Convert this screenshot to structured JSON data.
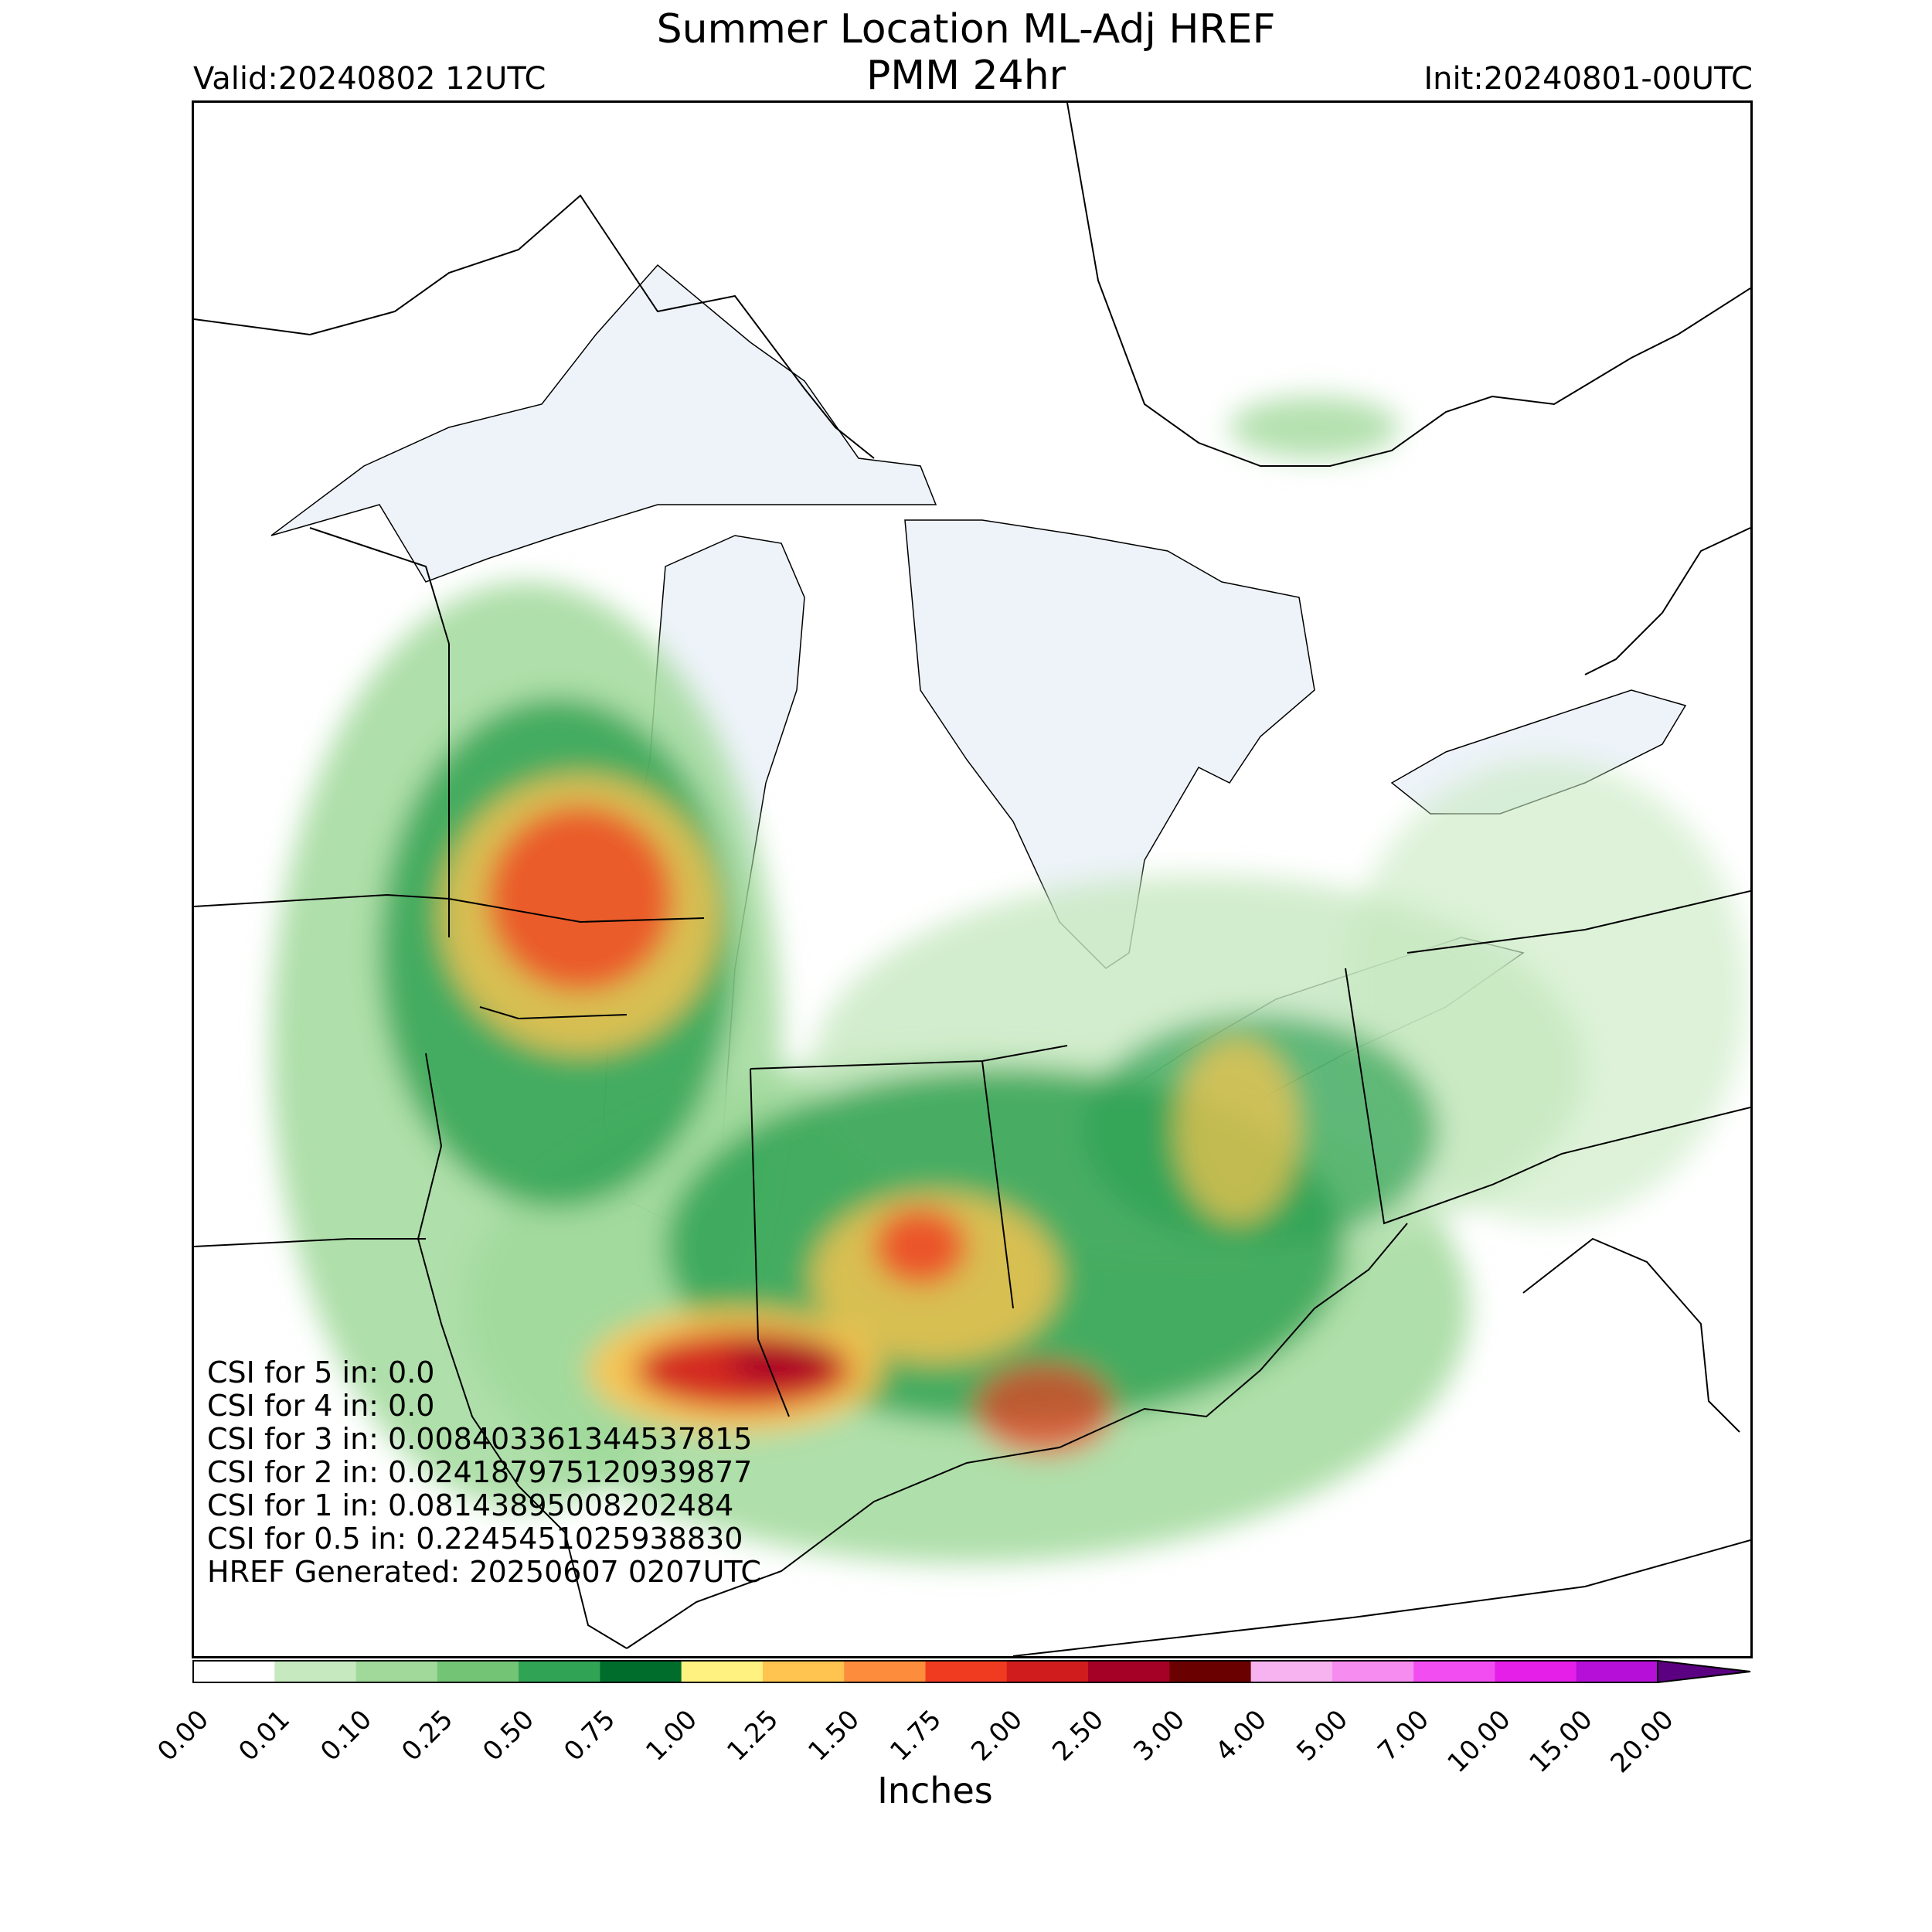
{
  "title_line1": "Summer Location ML-Adj HREF",
  "title_line2": "PMM 24hr",
  "valid": "Valid:20240802 12UTC",
  "init": "Init:20240801-00UTC",
  "stats": [
    "CSI for 5 in: 0.0",
    "CSI for 4 in: 0.0",
    "CSI for 3 in: 0.008403361344537815",
    "CSI for 2 in: 0.024187975120939877",
    "CSI for 1 in: 0.08143895008202484",
    "CSI for 0.5 in: 0.2245451025938830",
    "HREF Generated: 20250607 0207UTC"
  ],
  "colorbar": {
    "label": "Inches",
    "ticks": [
      "0.00",
      "0.01",
      "0.10",
      "0.25",
      "0.50",
      "0.75",
      "1.00",
      "1.25",
      "1.50",
      "1.75",
      "2.00",
      "2.50",
      "3.00",
      "4.00",
      "5.00",
      "7.00",
      "10.00",
      "15.00",
      "20.00"
    ],
    "colors": [
      "#ffffff",
      "#c7e9c0",
      "#a1d99b",
      "#74c476",
      "#31a354",
      "#006d2c",
      "#fff280",
      "#fec44f",
      "#fd8d3c",
      "#f03b20",
      "#d01c1c",
      "#a50026",
      "#6b0000",
      "#f7b3f0",
      "#f78cf0",
      "#f24df0",
      "#e51ee8",
      "#b50fd8",
      "#8a00c8"
    ],
    "extend_color": "#5a0080"
  },
  "legend_colors": {
    "lake": "#eef3f9",
    "boundary": "#000000"
  }
}
